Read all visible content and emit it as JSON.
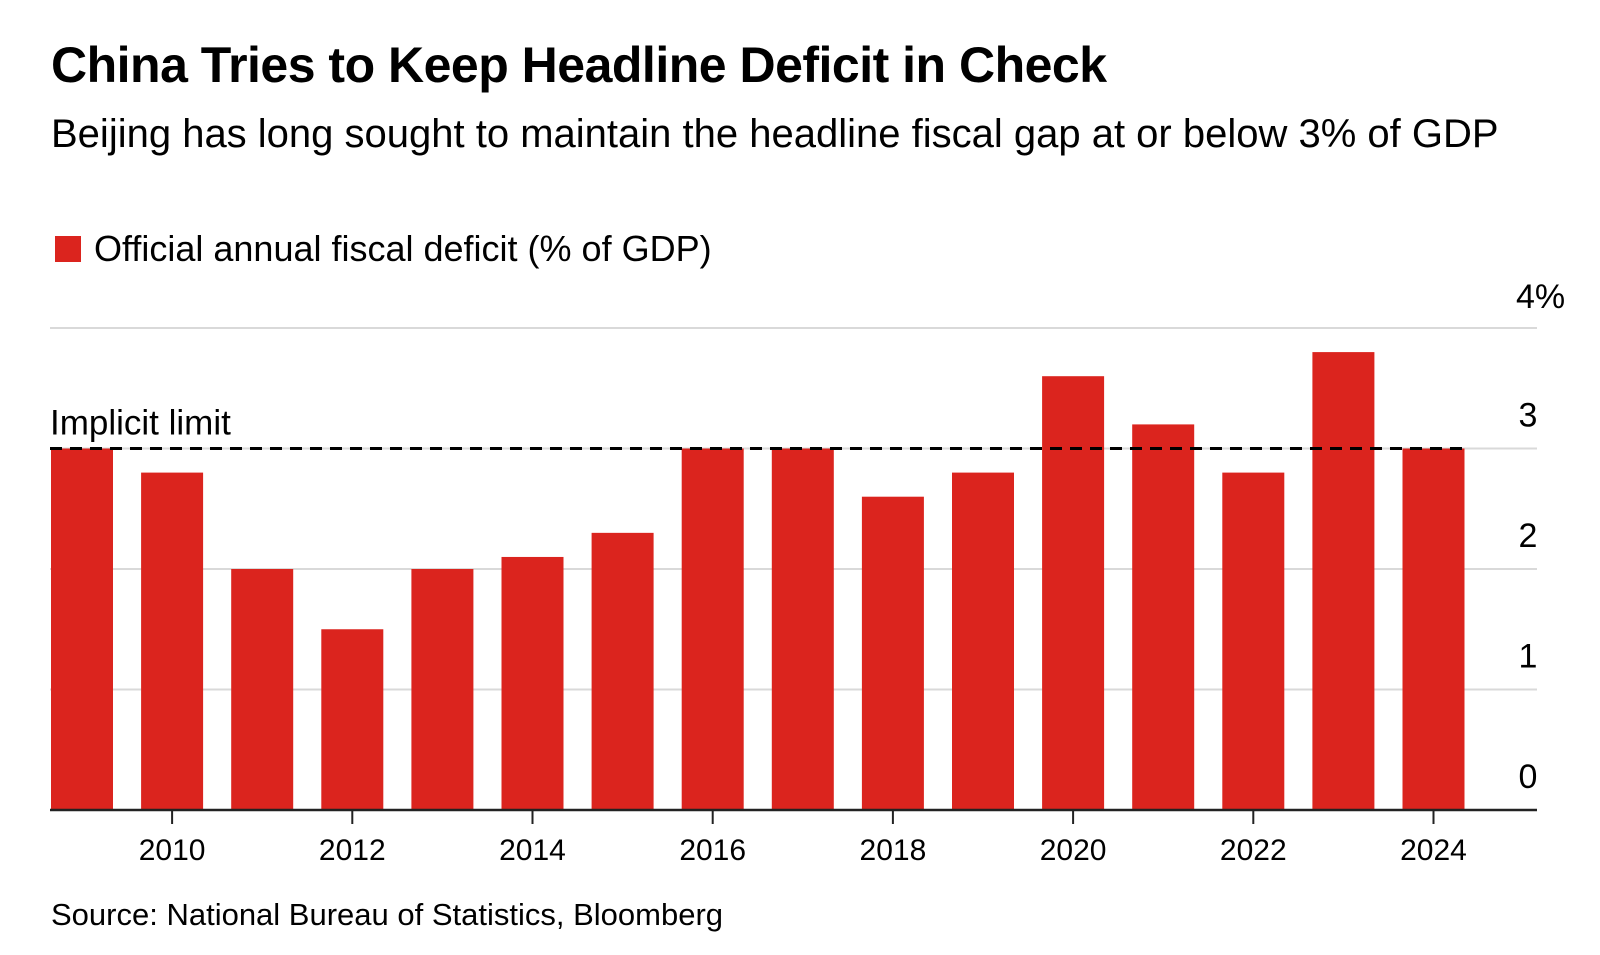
{
  "chart_data": {
    "type": "bar",
    "title": "China Tries to Keep Headline Deficit in Check",
    "subtitle": "Beijing has long sought to maintain the headline fiscal gap at or below 3% of GDP",
    "legend": {
      "label": "Official annual fiscal deficit (% of GDP)",
      "position": "top-left"
    },
    "series": [
      {
        "name": "Official annual fiscal deficit (% of GDP)",
        "color": "#db241e",
        "x": [
          2009,
          2010,
          2011,
          2012,
          2013,
          2014,
          2015,
          2016,
          2017,
          2018,
          2019,
          2020,
          2021,
          2022,
          2023,
          2024
        ],
        "values": [
          3.0,
          2.8,
          2.0,
          1.5,
          2.0,
          2.1,
          2.3,
          3.0,
          3.0,
          2.6,
          2.8,
          3.6,
          3.2,
          2.8,
          3.8,
          3.0
        ]
      }
    ],
    "reference_line": {
      "value": 3,
      "label": "Implicit limit",
      "style": "dashed"
    },
    "y_axis": {
      "position": "right",
      "ylim": [
        0,
        4
      ],
      "ticks": [
        0,
        1,
        2,
        3,
        4
      ],
      "tick_labels": [
        "0",
        "1",
        "2",
        "3",
        "4%"
      ]
    },
    "x_axis": {
      "ticks": [
        2010,
        2012,
        2014,
        2016,
        2018,
        2020,
        2022,
        2024
      ],
      "tick_labels": [
        "2010",
        "2012",
        "2014",
        "2016",
        "2018",
        "2020",
        "2022",
        "2024"
      ]
    },
    "grid": true,
    "source": "Source: National Bureau of Statistics, Bloomberg"
  }
}
